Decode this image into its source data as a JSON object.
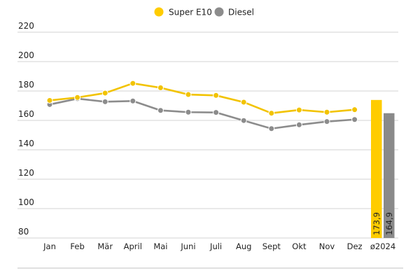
{
  "chart_data": {
    "type": "line",
    "title": "",
    "xlabel": "",
    "ylabel": "",
    "ylim": [
      80,
      220
    ],
    "yticks": [
      80,
      100,
      120,
      140,
      160,
      180,
      200,
      220
    ],
    "grid": true,
    "legend_position": "top-center",
    "categories": [
      "Jan",
      "Feb",
      "Mär",
      "April",
      "Mai",
      "Juni",
      "Juli",
      "Aug",
      "Sept",
      "Okt",
      "Nov",
      "Dez"
    ],
    "series": [
      {
        "name": "Super E10",
        "color": "#f2c300",
        "values": [
          173.6,
          175.6,
          178.6,
          185.2,
          182.2,
          177.6,
          177.0,
          172.4,
          164.9,
          167.1,
          165.6,
          167.3
        ]
      },
      {
        "name": "Diesel",
        "color": "#8c8c8c",
        "values": [
          170.8,
          174.8,
          172.7,
          173.2,
          166.8,
          165.6,
          165.4,
          159.9,
          154.4,
          157.0,
          159.2,
          160.6
        ]
      }
    ],
    "average": {
      "label": "ø2024",
      "bars": [
        {
          "name": "Super E10",
          "value": 173.9,
          "value_label": "173,9",
          "color": "#ffcc00"
        },
        {
          "name": "Diesel",
          "value": 164.9,
          "value_label": "164,9",
          "color": "#8a8a8a"
        }
      ]
    }
  }
}
